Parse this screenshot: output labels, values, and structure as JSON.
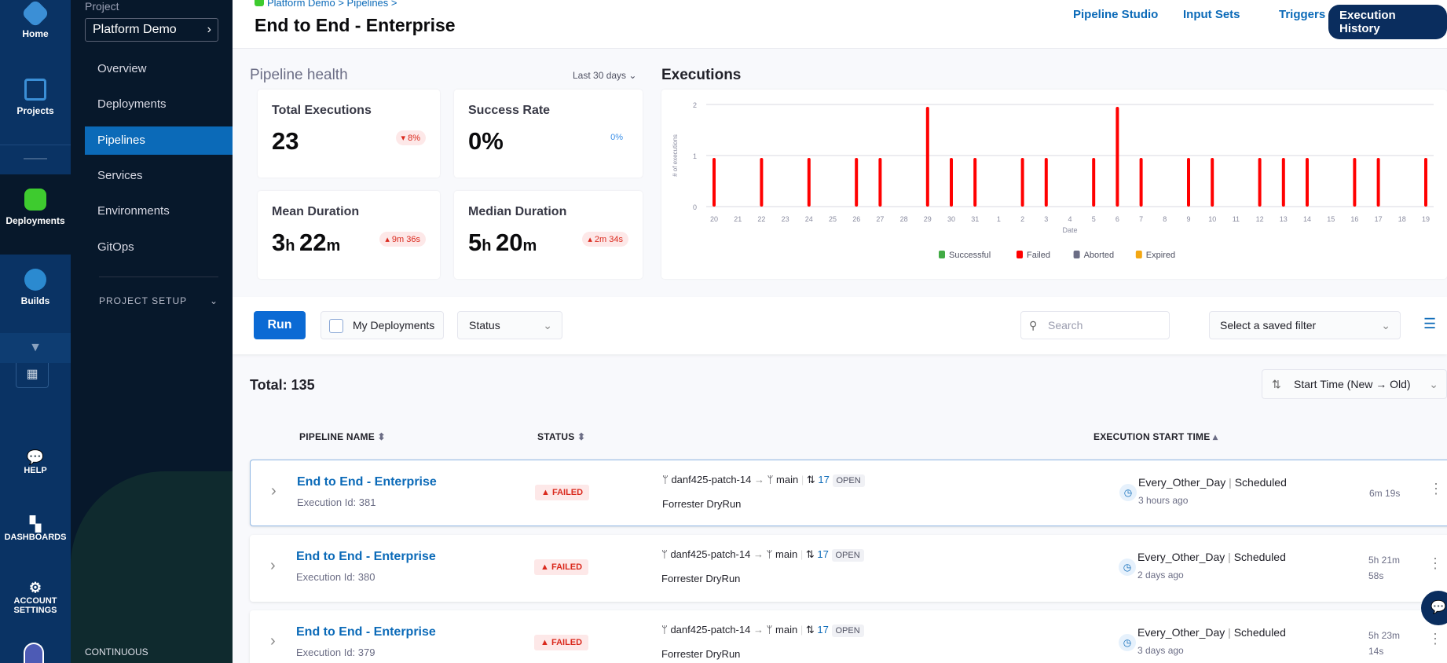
{
  "nav": {
    "home": "Home",
    "projects": "Projects",
    "deployments": "Deployments",
    "builds": "Builds",
    "help": "HELP",
    "dashboards": "DASHBOARDS",
    "account_settings": "ACCOUNT SETTINGS"
  },
  "project": {
    "label": "Project",
    "name": "Platform Demo",
    "items": [
      "Overview",
      "Deployments",
      "Pipelines",
      "Services",
      "Environments",
      "GitOps"
    ],
    "active": "Pipelines",
    "setup": "PROJECT SETUP",
    "footer": "CONTINUOUS"
  },
  "header": {
    "breadcrumb": [
      "Platform Demo",
      "Pipelines"
    ],
    "title": "End to End - Enterprise",
    "tabs": [
      "Pipeline Studio",
      "Input Sets",
      "Triggers",
      "Execution History"
    ],
    "active_tab": "Execution History"
  },
  "health": {
    "title": "Pipeline health",
    "range": "Last 30 days",
    "total": {
      "label": "Total Executions",
      "value": "23",
      "delta": "8%",
      "direction": "down"
    },
    "success": {
      "label": "Success Rate",
      "value": "0%",
      "delta": "0%"
    },
    "mean": {
      "label": "Mean Duration",
      "h": "3",
      "m": "22",
      "delta": "9m 36s",
      "direction": "up"
    },
    "median": {
      "label": "Median Duration",
      "h": "5",
      "m": "20",
      "delta": "2m 34s",
      "direction": "up"
    }
  },
  "chart_data": {
    "type": "bar",
    "title": "Executions",
    "xlabel": "Date",
    "ylabel": "# of executions",
    "ylim": [
      0,
      2
    ],
    "yticks": [
      0,
      1,
      2
    ],
    "grid": true,
    "legend_position": "bottom",
    "categories": [
      "20",
      "21",
      "22",
      "23",
      "24",
      "25",
      "26",
      "27",
      "28",
      "29",
      "30",
      "31",
      "1",
      "2",
      "3",
      "4",
      "5",
      "6",
      "7",
      "8",
      "9",
      "10",
      "11",
      "12",
      "13",
      "14",
      "15",
      "16",
      "17",
      "18",
      "19"
    ],
    "series": [
      {
        "name": "Successful",
        "color": "#42ab45",
        "values": [
          0,
          0,
          0,
          0,
          0,
          0,
          0,
          0,
          0,
          0,
          0,
          0,
          0,
          0,
          0,
          0,
          0,
          0,
          0,
          0,
          0,
          0,
          0,
          0,
          0,
          0,
          0,
          0,
          0,
          0,
          0
        ]
      },
      {
        "name": "Failed",
        "color": "#ff0000",
        "values": [
          1,
          0,
          1,
          0,
          1,
          0,
          1,
          1,
          0,
          2,
          1,
          1,
          0,
          1,
          1,
          0,
          1,
          2,
          1,
          0,
          1,
          1,
          0,
          1,
          1,
          1,
          0,
          1,
          1,
          0,
          1
        ]
      },
      {
        "name": "Aborted",
        "color": "#6b6d85",
        "values": [
          0,
          0,
          0,
          0,
          0,
          0,
          0,
          0,
          0,
          0,
          0,
          0,
          0,
          0,
          0,
          0,
          0,
          0,
          0,
          0,
          0,
          0,
          0,
          0,
          0,
          0,
          0,
          0,
          0,
          0,
          0
        ]
      },
      {
        "name": "Expired",
        "color": "#f3a712",
        "values": [
          0,
          0,
          0,
          0,
          0,
          0,
          0,
          0,
          0,
          0,
          0,
          0,
          0,
          0,
          0,
          0,
          0,
          0,
          0,
          0,
          0,
          0,
          0,
          0,
          0,
          0,
          0,
          0,
          0,
          0,
          0
        ]
      }
    ]
  },
  "toolbar": {
    "run": "Run",
    "my_deployments": "My Deployments",
    "status": "Status",
    "search_placeholder": "Search",
    "saved_filter": "Select a saved filter"
  },
  "list": {
    "total": "Total: 135",
    "sort": "Start Time (New → Old)",
    "columns": [
      "PIPELINE NAME",
      "STATUS",
      "EXECUTION START TIME"
    ],
    "rows": [
      {
        "name": "End to End - Enterprise",
        "exec_id": "Execution Id: 381",
        "status": "FAILED",
        "source": "danf425-patch-14",
        "target": "main",
        "pr": "17",
        "pr_state": "OPEN",
        "commit": "Forrester DryRun",
        "trigger": "Every_Other_Day",
        "trigger_type": "Scheduled",
        "time": "3 hours ago",
        "duration": "6m 19s"
      },
      {
        "name": "End to End - Enterprise",
        "exec_id": "Execution Id: 380",
        "status": "FAILED",
        "source": "danf425-patch-14",
        "target": "main",
        "pr": "17",
        "pr_state": "OPEN",
        "commit": "Forrester DryRun",
        "trigger": "Every_Other_Day",
        "trigger_type": "Scheduled",
        "time": "2 days ago",
        "duration": "5h 21m 58s"
      },
      {
        "name": "End to End - Enterprise",
        "exec_id": "Execution Id: 379",
        "status": "FAILED",
        "source": "danf425-patch-14",
        "target": "main",
        "pr": "17",
        "pr_state": "OPEN",
        "commit": "Forrester DryRun",
        "trigger": "Every_Other_Day",
        "trigger_type": "Scheduled",
        "time": "3 days ago",
        "duration": "5h 23m 14s"
      }
    ]
  }
}
